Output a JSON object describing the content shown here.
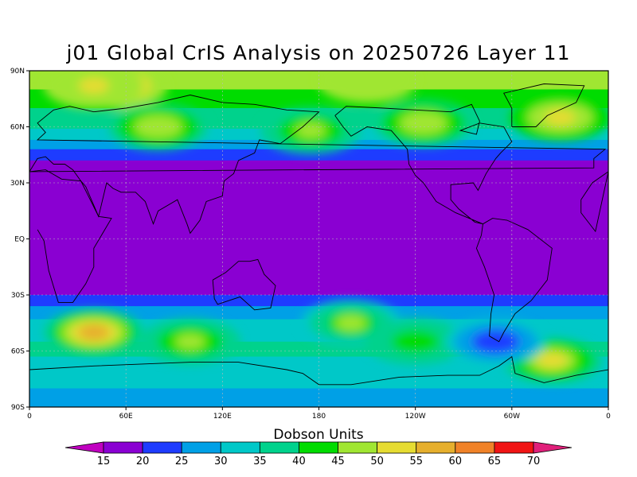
{
  "title": "j01 Global CrIS Analysis on 20250726 Layer 11",
  "colorbar": {
    "label": "Dobson Units",
    "ticks": [
      "15",
      "20",
      "25",
      "30",
      "35",
      "40",
      "45",
      "50",
      "55",
      "60",
      "65",
      "70"
    ],
    "under_color": "#c000c0",
    "over_color": "#e0207a",
    "colors": [
      "#8a00d2",
      "#1e3cff",
      "#00a0e6",
      "#00c8c8",
      "#00d28c",
      "#00dc00",
      "#a0e632",
      "#e6dc32",
      "#e6af2d",
      "#f08228",
      "#f01414"
    ]
  },
  "axes": {
    "x_ticks": [
      "0",
      "60E",
      "120E",
      "180",
      "120W",
      "60W",
      "0"
    ],
    "y_ticks": [
      "90N",
      "60N",
      "30N",
      "EQ",
      "30S",
      "60S",
      "90S"
    ]
  },
  "chart_data": {
    "type": "heatmap",
    "title": "j01 Global CrIS Analysis on 20250726 Layer 11",
    "units": "Dobson Units",
    "lon_range": [
      0,
      360
    ],
    "lat_range": [
      -90,
      90
    ],
    "levels": [
      15,
      20,
      25,
      30,
      35,
      40,
      45,
      50,
      55,
      60,
      65,
      70
    ],
    "zonal_profile": [
      {
        "lat": 90,
        "value": 46
      },
      {
        "lat": 80,
        "value": 45
      },
      {
        "lat": 70,
        "value": 40
      },
      {
        "lat": 60,
        "value": 36
      },
      {
        "lat": 50,
        "value": 27
      },
      {
        "lat": 45,
        "value": 22
      },
      {
        "lat": 40,
        "value": 18
      },
      {
        "lat": 30,
        "value": 15
      },
      {
        "lat": 0,
        "value": 15
      },
      {
        "lat": -25,
        "value": 15
      },
      {
        "lat": -32,
        "value": 22
      },
      {
        "lat": -40,
        "value": 28
      },
      {
        "lat": -50,
        "value": 34
      },
      {
        "lat": -60,
        "value": 36
      },
      {
        "lat": -70,
        "value": 33
      },
      {
        "lat": -80,
        "value": 30
      },
      {
        "lat": -90,
        "value": 28
      }
    ],
    "features": [
      {
        "lon": 55,
        "lat": 82,
        "value": 55
      },
      {
        "lon": 40,
        "lat": 82,
        "value": 50
      },
      {
        "lon": 210,
        "lat": 85,
        "value": 48
      },
      {
        "lon": 330,
        "lat": 65,
        "value": 52
      },
      {
        "lon": 245,
        "lat": 62,
        "value": 48
      },
      {
        "lon": 80,
        "lat": 60,
        "value": 48
      },
      {
        "lon": 175,
        "lat": 58,
        "value": 45
      },
      {
        "lon": 40,
        "lat": -50,
        "value": 57
      },
      {
        "lon": 100,
        "lat": -55,
        "value": 45
      },
      {
        "lon": 200,
        "lat": -45,
        "value": 45
      },
      {
        "lon": 240,
        "lat": -55,
        "value": 42
      },
      {
        "lon": 325,
        "lat": -65,
        "value": 50
      },
      {
        "lon": 290,
        "lat": -55,
        "value": 22
      }
    ]
  }
}
